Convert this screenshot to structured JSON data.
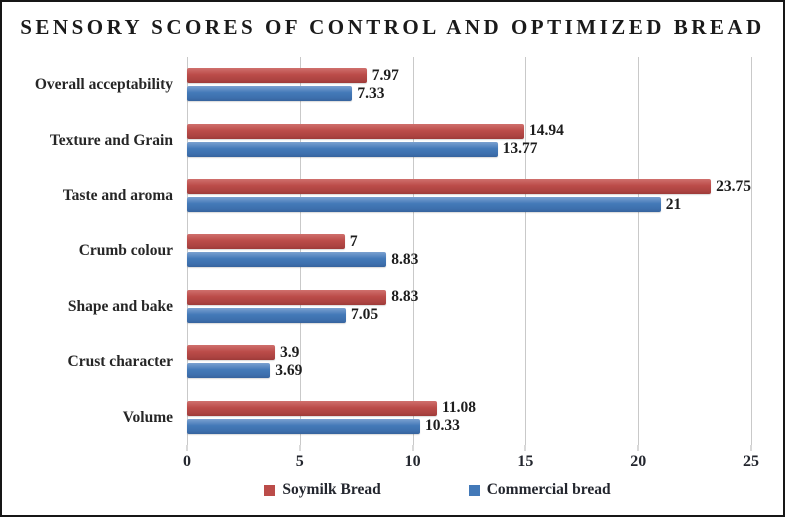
{
  "chart_data": {
    "type": "bar",
    "orientation": "horizontal",
    "title": "SENSORY SCORES OF CONTROL AND OPTIMIZED BREAD",
    "categories": [
      "Overall acceptability",
      "Texture and Grain",
      "Taste and aroma",
      "Crumb colour",
      "Shape and bake",
      "Crust character",
      "Volume"
    ],
    "series": [
      {
        "name": "Soymilk Bread",
        "color": "#bb4c49",
        "values": [
          7.97,
          14.94,
          23.75,
          7,
          8.83,
          3.9,
          11.08
        ]
      },
      {
        "name": "Commercial bread",
        "color": "#4379b8",
        "values": [
          7.33,
          13.77,
          21,
          8.83,
          7.05,
          3.69,
          10.33
        ]
      }
    ],
    "xlim": [
      0,
      25
    ],
    "x_ticks": [
      0,
      5,
      10,
      15,
      20,
      25
    ],
    "grid": true,
    "value_labels": true,
    "legend_position": "bottom",
    "colors": {
      "gridline": "#c9c9c9",
      "text": "#262626",
      "frame_border": "#161616"
    }
  }
}
